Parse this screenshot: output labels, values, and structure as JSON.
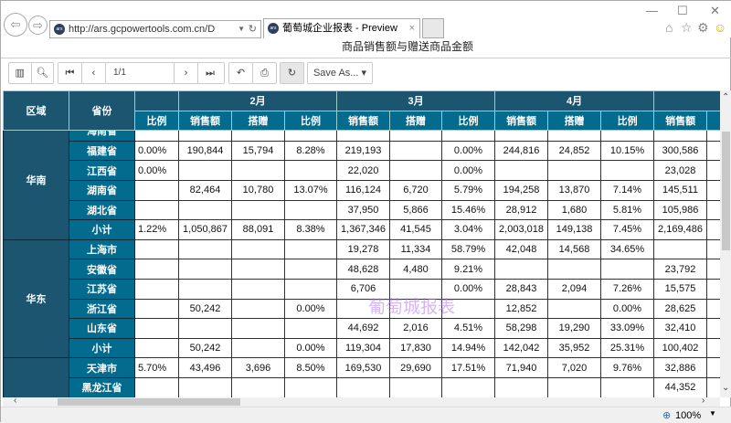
{
  "browser": {
    "url": "http://ars.gcpowertools.com.cn/D",
    "tab_title": "葡萄城企业报表 - Preview",
    "favicon_text": "ars"
  },
  "report_title": "商品销售额与赠送商品金额",
  "toolbar": {
    "page": "1/1",
    "save_as": "Save As..."
  },
  "header": {
    "region": "区域",
    "province": "省份",
    "months": [
      "2月",
      "3月",
      "4月"
    ],
    "sub": [
      "比例",
      "销售额",
      "搭赠",
      "比例",
      "销售额",
      "搭赠",
      "比例",
      "销售额",
      "搭赠",
      "比例",
      "销售额"
    ]
  },
  "groups": [
    {
      "region": "华南",
      "rows": [
        {
          "p": "海南省",
          "v": [
            "",
            "",
            "",
            "",
            "",
            "",
            "",
            "",
            "",
            "",
            ""
          ]
        },
        {
          "p": "福建省",
          "v": [
            "0.00%",
            "190,844",
            "15,794",
            "8.28%",
            "219,193",
            "",
            "0.00%",
            "244,816",
            "24,852",
            "10.15%",
            "300,586"
          ]
        },
        {
          "p": "江西省",
          "v": [
            "0.00%",
            "",
            "",
            "",
            "22,020",
            "",
            "0.00%",
            "",
            "",
            "",
            "23,028"
          ]
        },
        {
          "p": "湖南省",
          "v": [
            "",
            "82,464",
            "10,780",
            "13.07%",
            "116,124",
            "6,720",
            "5.79%",
            "194,258",
            "13,870",
            "7.14%",
            "145,511"
          ]
        },
        {
          "p": "湖北省",
          "v": [
            "",
            "",
            "",
            "",
            "37,950",
            "5,866",
            "15.46%",
            "28,912",
            "1,680",
            "5.81%",
            "105,986"
          ]
        },
        {
          "p": "小计",
          "v": [
            "1.22%",
            "1,050,867",
            "88,091",
            "8.38%",
            "1,367,346",
            "41,545",
            "3.04%",
            "2,003,018",
            "149,138",
            "7.45%",
            "2,169,486"
          ]
        }
      ]
    },
    {
      "region": "华东",
      "rows": [
        {
          "p": "上海市",
          "v": [
            "",
            "",
            "",
            "",
            "19,278",
            "11,334",
            "58.79%",
            "42,048",
            "14,568",
            "34.65%",
            ""
          ]
        },
        {
          "p": "安徽省",
          "v": [
            "",
            "",
            "",
            "",
            "48,628",
            "4,480",
            "9.21%",
            "",
            "",
            "",
            "23,792"
          ]
        },
        {
          "p": "江苏省",
          "v": [
            "",
            "",
            "",
            "",
            "6,706",
            "",
            "0.00%",
            "28,843",
            "2,094",
            "7.26%",
            "15,575"
          ]
        },
        {
          "p": "浙江省",
          "v": [
            "",
            "50,242",
            "",
            "0.00%",
            "",
            "",
            "",
            "12,852",
            "",
            "0.00%",
            "28,625"
          ]
        },
        {
          "p": "山东省",
          "v": [
            "",
            "",
            "",
            "",
            "44,692",
            "2,016",
            "4.51%",
            "58,298",
            "19,290",
            "33.09%",
            "32,410"
          ]
        },
        {
          "p": "小计",
          "v": [
            "",
            "50,242",
            "",
            "0.00%",
            "119,304",
            "17,830",
            "14.94%",
            "142,042",
            "35,952",
            "25.31%",
            "100,402"
          ]
        }
      ]
    },
    {
      "region": "",
      "rows": [
        {
          "p": "天津市",
          "v": [
            "5.70%",
            "43,496",
            "3,696",
            "8.50%",
            "169,530",
            "29,690",
            "17.51%",
            "71,940",
            "7,020",
            "9.76%",
            "32,886"
          ]
        },
        {
          "p": "黑龙江省",
          "v": [
            "",
            "",
            "",
            "",
            "",
            "",
            "",
            "",
            "",
            "",
            "44,352"
          ]
        }
      ]
    }
  ],
  "watermark": "葡萄城报表",
  "status": {
    "zoom": "100%"
  }
}
